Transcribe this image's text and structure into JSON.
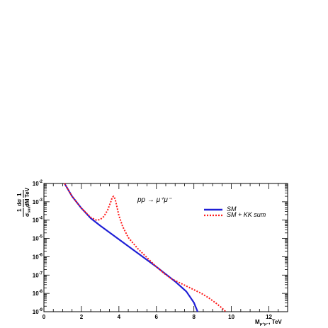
{
  "chart_data": {
    "type": "line",
    "title": "",
    "annotation": "pp → μ⁺μ⁻",
    "xlabel": {
      "main": "M",
      "sub": "μ⁺μ⁻",
      "unit": ", TeV"
    },
    "ylabel": {
      "num1": "1",
      "num2": "dσ",
      "num3": "1",
      "den1": "σ",
      "den1_sub": "sum",
      "den2": "dM",
      "den3": "TeV"
    },
    "xlim": [
      0,
      13
    ],
    "ylim_log10": [
      -9,
      -2
    ],
    "y_scale": "log",
    "x_ticks": [
      0,
      2,
      4,
      6,
      8,
      10,
      12
    ],
    "x_tick_labels": [
      "0",
      "2",
      "4",
      "6",
      "8",
      "10",
      "12"
    ],
    "y_ticks_log10": [
      -9,
      -8,
      -7,
      -6,
      -5,
      -4,
      -3,
      -2
    ],
    "y_tick_bases": [
      "10",
      "10",
      "10",
      "10",
      "10",
      "10",
      "10",
      "10"
    ],
    "y_tick_exps": [
      "-9",
      "-8",
      "-7",
      "-6",
      "-5",
      "-4",
      "-3",
      "-2"
    ],
    "grid": false,
    "legend_position": "top-right",
    "series": [
      {
        "name": "SM",
        "color": "#1f1fd6",
        "style": "solid",
        "x": [
          1.1,
          1.5,
          2.0,
          2.5,
          3.0,
          4.0,
          5.0,
          6.0,
          7.0,
          7.6,
          8.0,
          8.2
        ],
        "y_log10": [
          -2.0,
          -2.7,
          -3.35,
          -3.9,
          -4.3,
          -5.05,
          -5.8,
          -6.55,
          -7.35,
          -7.9,
          -8.5,
          -9.0
        ]
      },
      {
        "name": "SM + KK sum",
        "color": "#ff1a1a",
        "style": "dotted",
        "x": [
          1.1,
          1.5,
          2.0,
          2.5,
          2.8,
          3.0,
          3.2,
          3.4,
          3.55,
          3.65,
          3.72,
          3.8,
          3.9,
          4.0,
          4.2,
          4.5,
          5.0,
          5.5,
          6.0,
          6.4,
          6.8,
          7.2,
          7.6,
          8.0,
          8.4,
          8.8,
          9.2,
          9.5,
          9.7
        ],
        "y_log10": [
          -2.0,
          -2.7,
          -3.35,
          -3.85,
          -4.0,
          -3.97,
          -3.8,
          -3.45,
          -3.05,
          -2.75,
          -2.7,
          -2.85,
          -3.3,
          -3.75,
          -4.35,
          -4.95,
          -5.55,
          -6.05,
          -6.55,
          -6.9,
          -7.2,
          -7.4,
          -7.6,
          -7.8,
          -8.0,
          -8.25,
          -8.55,
          -8.8,
          -9.0
        ]
      }
    ]
  }
}
